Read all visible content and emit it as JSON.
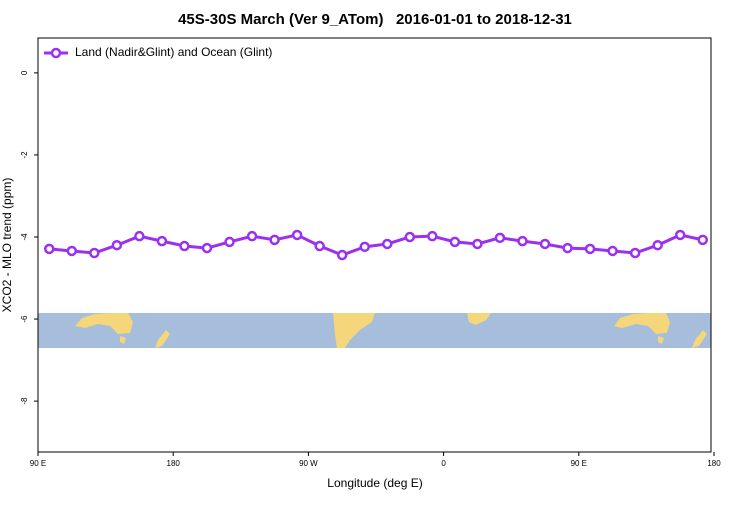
{
  "chart_data": {
    "type": "line",
    "title": "45S-30S March (Ver 9_ATom)   2016-01-01 to 2018-12-31",
    "x_label": "Longitude (deg E)",
    "y_label": "XCO2 - MLO trend (ppm)",
    "x": [
      97.5,
      112.5,
      127.5,
      142.5,
      157.5,
      172.5,
      187.5,
      202.5,
      217.5,
      232.5,
      247.5,
      262.5,
      277.5,
      292.5,
      307.5,
      322.5,
      337.5,
      352.5,
      367.5,
      382.5,
      397.5,
      412.5,
      427.5,
      442.5,
      457.5,
      472.5,
      487.5,
      502.5,
      517.5,
      532.5
    ],
    "series": [
      {
        "name": "Land (Nadir&Glint) and Ocean (Glint)",
        "color": "#9b30f0",
        "values": [
          -4.29,
          -4.34,
          -4.39,
          -4.2,
          -3.98,
          -4.1,
          -4.22,
          -4.27,
          -4.12,
          -3.98,
          -4.07,
          -3.95,
          -4.22,
          -4.44,
          -4.24,
          -4.17,
          -4.0,
          -3.98,
          -4.12,
          -4.17,
          -4.02,
          -4.1,
          -4.17,
          -4.27,
          -4.29,
          -4.34,
          -4.39,
          -4.2,
          -3.95,
          -4.07
        ]
      }
    ],
    "xlim": [
      90,
      538
    ],
    "ylim": [
      -9.24,
      0.85
    ],
    "xticks": [
      {
        "value": 90,
        "label": "90 E"
      },
      180,
      {
        "value": 270,
        "label": "90 W"
      },
      {
        "value": 360,
        "label": "0"
      },
      {
        "value": 450,
        "label": "90 E"
      },
      {
        "value": 540,
        "label": "180"
      }
    ],
    "yticks": [
      0,
      -2,
      -4,
      -6,
      -8
    ],
    "legend": "top-left"
  }
}
